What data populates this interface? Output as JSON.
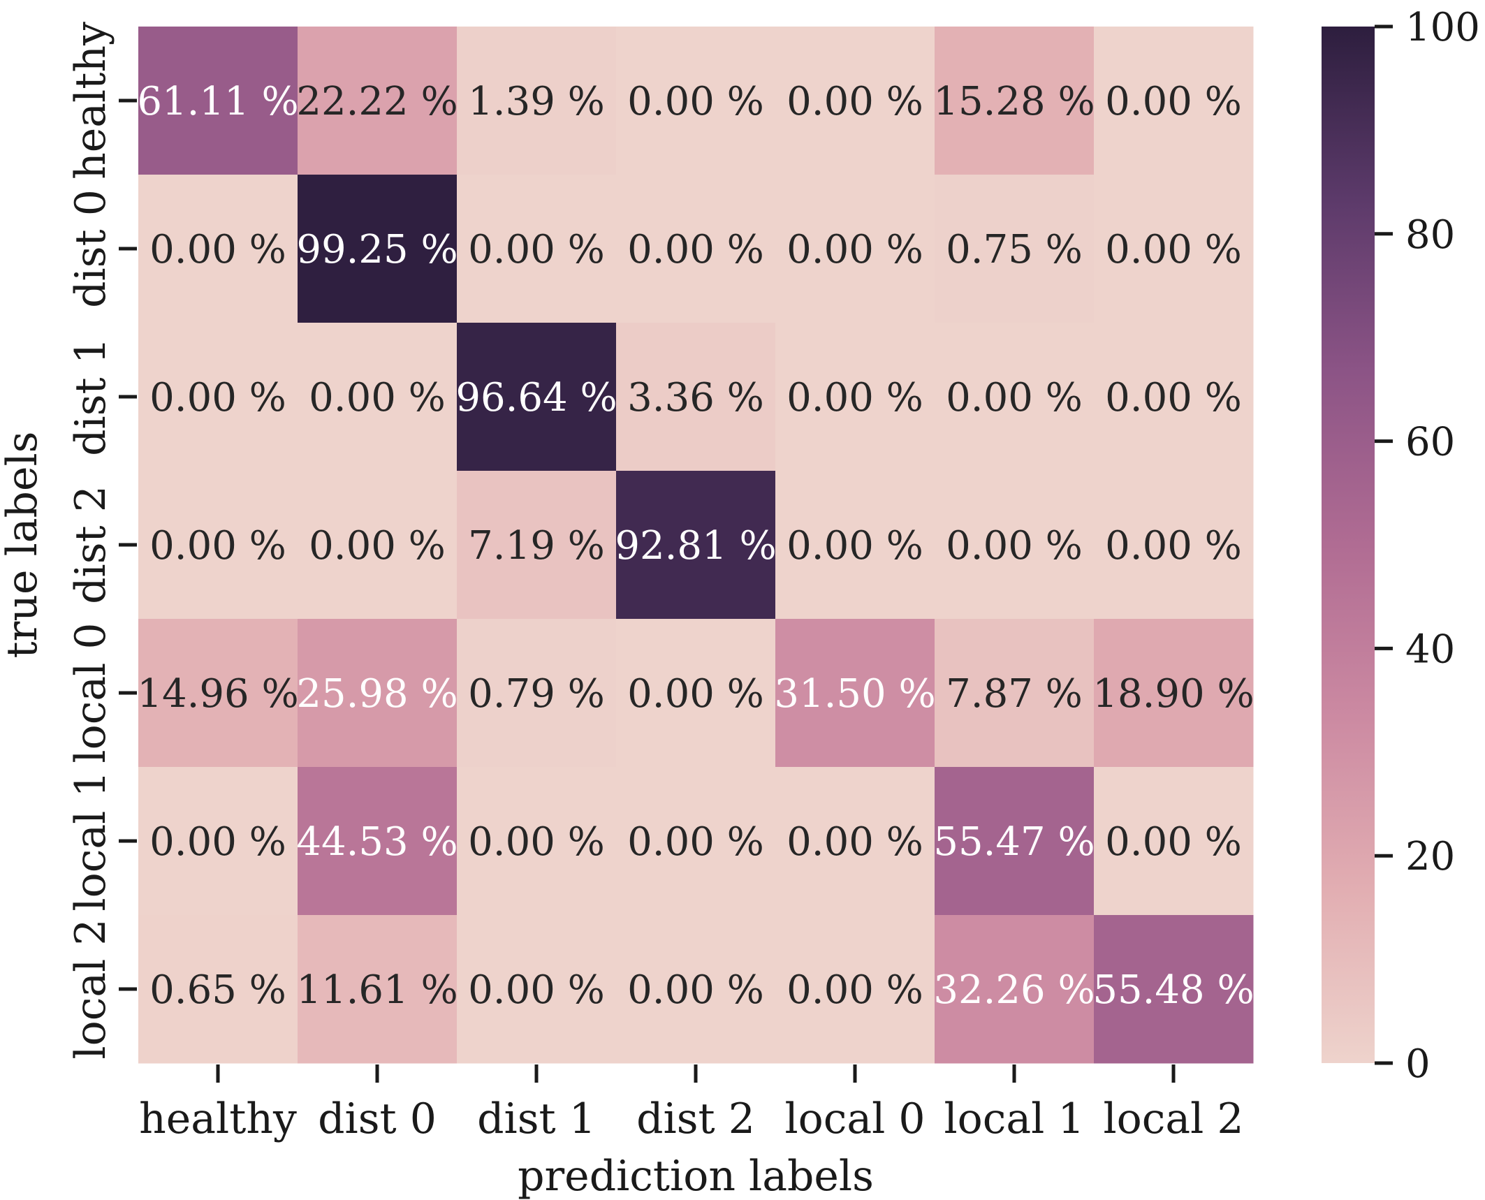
{
  "chart_data": {
    "type": "heatmap",
    "title": "",
    "xlabel": "prediction labels",
    "ylabel": "true labels",
    "x_categories": [
      "healthy",
      "dist 0",
      "dist 1",
      "dist 2",
      "local 0",
      "local 1",
      "local 2"
    ],
    "y_categories": [
      "healthy",
      "dist 0",
      "dist 1",
      "dist 2",
      "local 0",
      "local 1",
      "local 2"
    ],
    "values": [
      [
        61.11,
        22.22,
        1.39,
        0.0,
        0.0,
        15.28,
        0.0
      ],
      [
        0.0,
        99.25,
        0.0,
        0.0,
        0.0,
        0.75,
        0.0
      ],
      [
        0.0,
        0.0,
        96.64,
        3.36,
        0.0,
        0.0,
        0.0
      ],
      [
        0.0,
        0.0,
        7.19,
        92.81,
        0.0,
        0.0,
        0.0
      ],
      [
        14.96,
        25.98,
        0.79,
        0.0,
        31.5,
        7.87,
        18.9
      ],
      [
        0.0,
        44.53,
        0.0,
        0.0,
        0.0,
        55.47,
        0.0
      ],
      [
        0.65,
        11.61,
        0.0,
        0.0,
        0.0,
        32.26,
        55.48
      ]
    ],
    "cell_text": [
      [
        "61.11 %",
        "22.22 %",
        "1.39 %",
        "0.00 %",
        "0.00 %",
        "15.28 %",
        "0.00 %"
      ],
      [
        "0.00 %",
        "99.25 %",
        "0.00 %",
        "0.00 %",
        "0.00 %",
        "0.75 %",
        "0.00 %"
      ],
      [
        "0.00 %",
        "0.00 %",
        "96.64 %",
        "3.36 %",
        "0.00 %",
        "0.00 %",
        "0.00 %"
      ],
      [
        "0.00 %",
        "0.00 %",
        "7.19 %",
        "92.81 %",
        "0.00 %",
        "0.00 %",
        "0.00 %"
      ],
      [
        "14.96 %",
        "25.98 %",
        "0.79 %",
        "0.00 %",
        "31.50 %",
        "7.87 %",
        "18.90 %"
      ],
      [
        "0.00 %",
        "44.53 %",
        "0.00 %",
        "0.00 %",
        "0.00 %",
        "55.47 %",
        "0.00 %"
      ],
      [
        "0.65 %",
        "11.61 %",
        "0.00 %",
        "0.00 %",
        "0.00 %",
        "32.26 %",
        "55.48 %"
      ]
    ],
    "colorbar": {
      "range": [
        0,
        100
      ],
      "ticks": [
        0,
        20,
        40,
        60,
        80,
        100
      ],
      "tick_labels": [
        "0",
        "20",
        "40",
        "60",
        "80",
        "100"
      ],
      "colormap": [
        "#eed3cc",
        "#e2aeb2",
        "#cc8aa2",
        "#b06c93",
        "#8c5486",
        "#5c3a6a",
        "#2d1e3e"
      ]
    },
    "grid": false,
    "legend": "colorbar-right"
  }
}
